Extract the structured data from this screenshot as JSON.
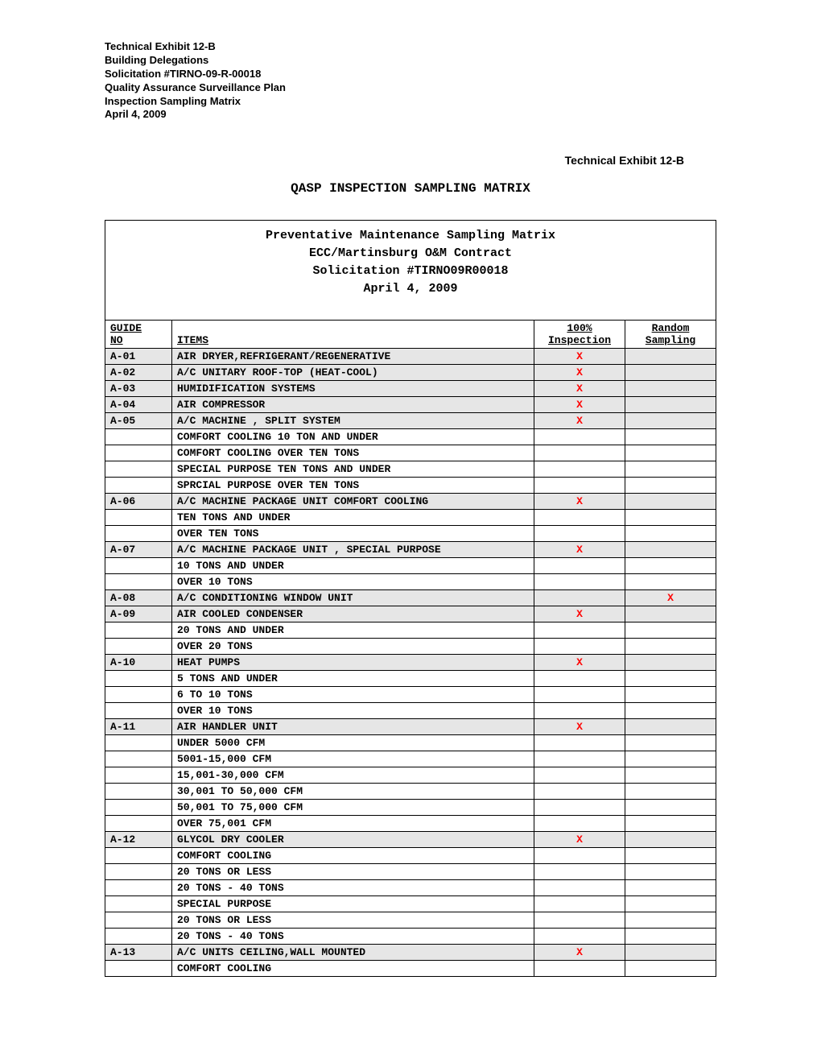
{
  "header": {
    "lines": [
      "Technical Exhibit 12-B",
      "Building Delegations",
      "Solicitation #TIRNO-09-R-00018",
      "Quality Assurance Surveillance Plan",
      "Inspection Sampling Matrix",
      "April 4, 2009"
    ]
  },
  "exhibit_right": "Technical Exhibit 12-B",
  "main_title": "QASP INSPECTION SAMPLING MATRIX",
  "table_header": {
    "line1": "Preventative Maintenance Sampling Matrix",
    "line2": "ECC/Martinsburg O&M Contract",
    "line3": "Solicitation #TIRNO09R00018",
    "line4": "April 4, 2009"
  },
  "columns": {
    "guide_no_1": "GUIDE",
    "guide_no_2": " NO",
    "items": "ITEMS",
    "inspection_1": "100%",
    "inspection_2": "Inspection",
    "random_1": "Random",
    "random_2": "Sampling"
  },
  "mark": "X",
  "rows": [
    {
      "guide": "A-01",
      "item": "AIR DRYER,REFRIGERANT/REGENERATIVE",
      "insp": true,
      "rand": false,
      "main": true
    },
    {
      "guide": "A-02",
      "item": "A/C UNITARY ROOF-TOP (HEAT-COOL)",
      "insp": true,
      "rand": false,
      "main": true
    },
    {
      "guide": "A-03",
      "item": "HUMIDIFICATION SYSTEMS",
      "insp": true,
      "rand": false,
      "main": true
    },
    {
      "guide": "A-04",
      "item": "AIR COMPRESSOR",
      "insp": true,
      "rand": false,
      "main": true
    },
    {
      "guide": "A-05",
      "item": "A/C MACHINE , SPLIT SYSTEM",
      "insp": true,
      "rand": false,
      "main": true
    },
    {
      "guide": "",
      "item": "COMFORT COOLING 10 TON AND UNDER",
      "insp": false,
      "rand": false,
      "main": false
    },
    {
      "guide": "",
      "item": "COMFORT COOLING  OVER TEN TONS",
      "insp": false,
      "rand": false,
      "main": false
    },
    {
      "guide": "",
      "item": "SPECIAL PURPOSE  TEN TONS AND UNDER",
      "insp": false,
      "rand": false,
      "main": false
    },
    {
      "guide": "",
      "item": "SPRCIAL PURPOSE OVER TEN TONS",
      "insp": false,
      "rand": false,
      "main": false
    },
    {
      "guide": "A-06",
      "item": "A/C MACHINE PACKAGE UNIT COMFORT COOLING",
      "insp": true,
      "rand": false,
      "main": true
    },
    {
      "guide": "",
      "item": "TEN TONS AND UNDER",
      "insp": false,
      "rand": false,
      "main": false
    },
    {
      "guide": "",
      "item": "OVER TEN TONS",
      "insp": false,
      "rand": false,
      "main": false
    },
    {
      "guide": "A-07",
      "item": "A/C MACHINE PACKAGE UNIT , SPECIAL PURPOSE",
      "insp": true,
      "rand": false,
      "main": true
    },
    {
      "guide": "",
      "item": "10 TONS AND UNDER",
      "insp": false,
      "rand": false,
      "main": false
    },
    {
      "guide": "",
      "item": "OVER 10 TONS",
      "insp": false,
      "rand": false,
      "main": false
    },
    {
      "guide": "A-08",
      "item": "A/C CONDITIONING WINDOW UNIT",
      "insp": false,
      "rand": true,
      "main": true
    },
    {
      "guide": "A-09",
      "item": "AIR COOLED CONDENSER",
      "insp": true,
      "rand": false,
      "main": true
    },
    {
      "guide": "",
      "item": "20 TONS AND UNDER",
      "insp": false,
      "rand": false,
      "main": false
    },
    {
      "guide": "",
      "item": "OVER 20 TONS",
      "insp": false,
      "rand": false,
      "main": false
    },
    {
      "guide": "A-10",
      "item": "HEAT PUMPS",
      "insp": true,
      "rand": false,
      "main": true
    },
    {
      "guide": "",
      "item": "5 TONS AND UNDER",
      "insp": false,
      "rand": false,
      "main": false
    },
    {
      "guide": "",
      "item": "6 TO 10 TONS",
      "insp": false,
      "rand": false,
      "main": false
    },
    {
      "guide": "",
      "item": "OVER 10 TONS",
      "insp": false,
      "rand": false,
      "main": false
    },
    {
      "guide": "A-11",
      "item": "AIR HANDLER UNIT",
      "insp": true,
      "rand": false,
      "main": true
    },
    {
      "guide": "",
      "item": "UNDER 5000 CFM",
      "insp": false,
      "rand": false,
      "main": false
    },
    {
      "guide": "",
      "item": "5001-15,000 CFM",
      "insp": false,
      "rand": false,
      "main": false
    },
    {
      "guide": "",
      "item": "15,001-30,000 CFM",
      "insp": false,
      "rand": false,
      "main": false
    },
    {
      "guide": "",
      "item": "30,001 TO 50,000 CFM",
      "insp": false,
      "rand": false,
      "main": false
    },
    {
      "guide": "",
      "item": "50,001 TO 75,000 CFM",
      "insp": false,
      "rand": false,
      "main": false
    },
    {
      "guide": "",
      "item": "OVER 75,001 CFM",
      "insp": false,
      "rand": false,
      "main": false
    },
    {
      "guide": "A-12",
      "item": "GLYCOL DRY COOLER",
      "insp": true,
      "rand": false,
      "main": true
    },
    {
      "guide": "",
      "item": "COMFORT COOLING",
      "insp": false,
      "rand": false,
      "main": false
    },
    {
      "guide": "",
      "item": "20 TONS OR LESS",
      "insp": false,
      "rand": false,
      "main": false
    },
    {
      "guide": "",
      "item": "20 TONS - 40 TONS",
      "insp": false,
      "rand": false,
      "main": false
    },
    {
      "guide": "",
      "item": "SPECIAL PURPOSE",
      "insp": false,
      "rand": false,
      "main": false
    },
    {
      "guide": "",
      "item": "20 TONS OR LESS",
      "insp": false,
      "rand": false,
      "main": false
    },
    {
      "guide": "",
      "item": "20 TONS - 40 TONS",
      "insp": false,
      "rand": false,
      "main": false
    },
    {
      "guide": "A-13",
      "item": "A/C UNITS CEILING,WALL MOUNTED",
      "insp": true,
      "rand": false,
      "main": true
    },
    {
      "guide": "",
      "item": "COMFORT COOLING",
      "insp": false,
      "rand": false,
      "main": false
    }
  ]
}
